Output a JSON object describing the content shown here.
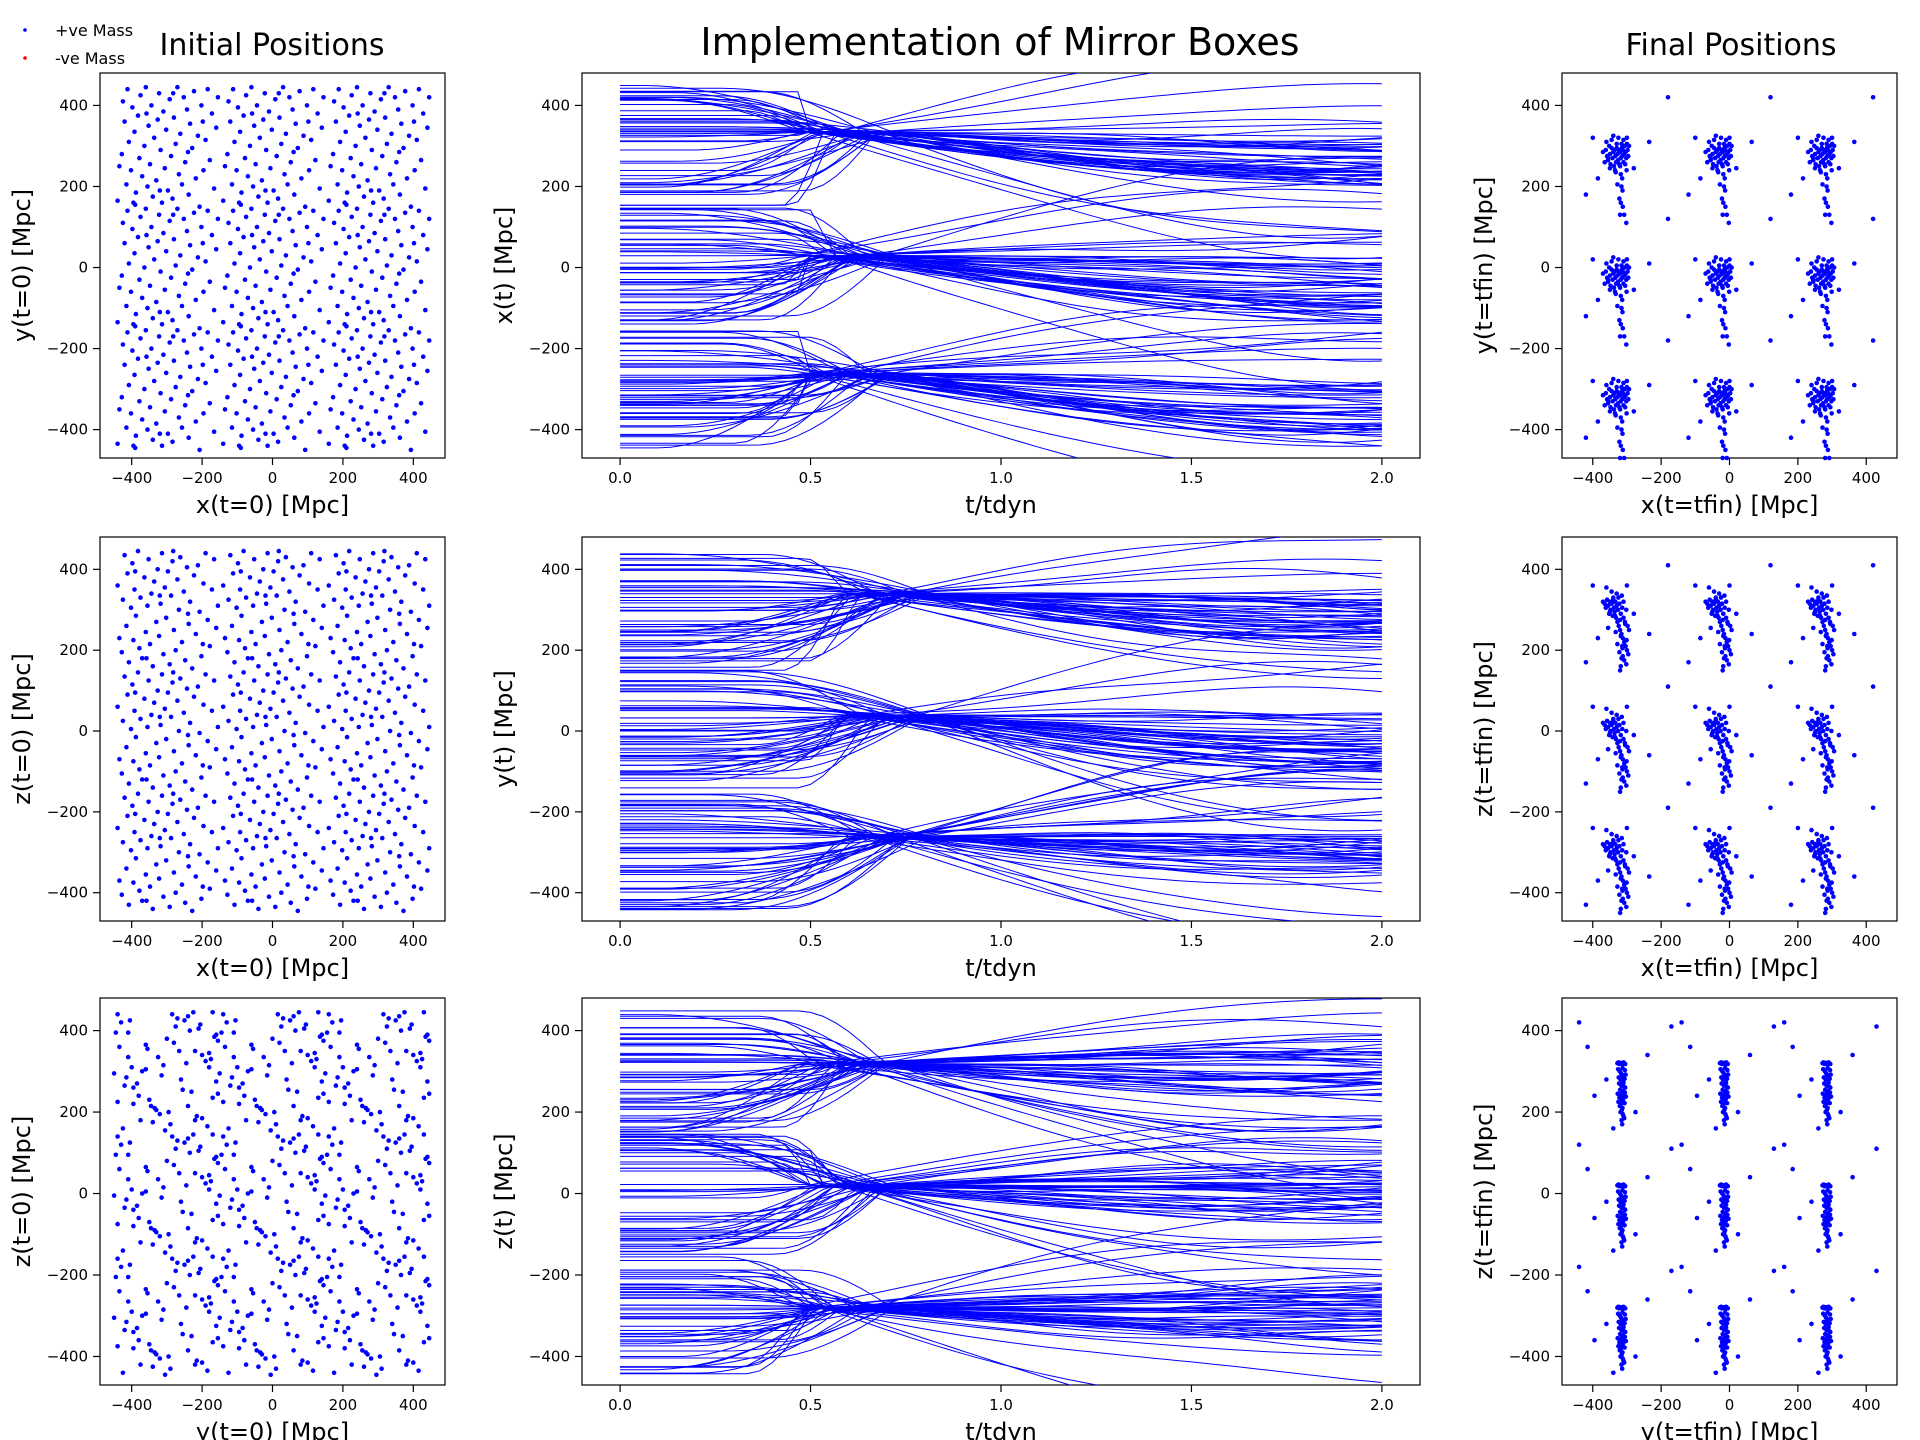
{
  "figure": {
    "suptitle": "Implementation of Mirror Boxes",
    "col_titles": [
      "Initial Positions",
      "",
      "Final Positions"
    ],
    "legend": [
      {
        "label": "+ve Mass",
        "color": "#0000ff"
      },
      {
        "label": "-ve Mass",
        "color": "#ff0000"
      }
    ]
  },
  "chart_data": [
    {
      "id": "init-xy",
      "type": "scatter",
      "xlabel": "x(t=0) [Mpc]",
      "ylabel": "y(t=0) [Mpc]",
      "xlim": [
        -490,
        490
      ],
      "ylim": [
        -470,
        480
      ],
      "xticks": [
        -400,
        -200,
        0,
        200,
        400
      ],
      "yticks": [
        -400,
        -200,
        0,
        200,
        400
      ],
      "x_offsets": [
        -300,
        0,
        300
      ],
      "y_offsets": [
        -300,
        0,
        300
      ],
      "base_x": [
        -140,
        -128,
        -125,
        -120,
        -115,
        -112,
        -108,
        -102,
        -98,
        -95,
        -92,
        -88,
        -82,
        -78,
        -75,
        -70,
        -64,
        -60,
        -55,
        -52,
        -48,
        -44,
        -40,
        -36,
        -30,
        -26,
        -22,
        -18,
        -14,
        -10,
        -6,
        -2,
        3,
        8,
        12,
        16,
        20,
        25,
        30,
        34,
        38,
        43,
        48,
        52,
        57,
        62,
        66,
        72,
        77,
        82,
        88,
        93,
        98,
        104,
        110,
        116,
        122,
        128,
        134,
        140,
        145,
        -135,
        -90,
        -58,
        -20,
        18,
        60,
        102,
        138
      ],
      "base_y": [
        -135,
        -20,
        110,
        60,
        -95,
        140,
        10,
        -60,
        95,
        -140,
        35,
        -115,
        75,
        -30,
        125,
        -75,
        0,
        145,
        -100,
        50,
        -45,
        100,
        -125,
        20,
        -85,
        65,
        130,
        -10,
        -140,
        85,
        -55,
        40,
        -110,
        115,
        -25,
        -130,
        70,
        5,
        145,
        -70,
        30,
        -95,
        120,
        -40,
        90,
        -120,
        55,
        -5,
        135,
        -80,
        25,
        -150,
        100,
        -60,
        15,
        140,
        -35,
        80,
        -105,
        45,
        120,
        -50,
        -145,
        80,
        -110,
        130,
        -15,
        60
      ]
    },
    {
      "id": "init-xz",
      "type": "scatter",
      "xlabel": "x(t=0) [Mpc]",
      "ylabel": "z(t=0) [Mpc]",
      "xlim": [
        -490,
        490
      ],
      "ylim": [
        -470,
        480
      ],
      "xticks": [
        -400,
        -200,
        0,
        200,
        400
      ],
      "yticks": [
        -400,
        -200,
        0,
        200,
        400
      ],
      "x_offsets": [
        -300,
        0,
        300
      ],
      "y_offsets": [
        -300,
        0,
        300
      ],
      "base_x": [
        -140,
        -128,
        -125,
        -120,
        -115,
        -112,
        -108,
        -102,
        -98,
        -95,
        -92,
        -88,
        -82,
        -78,
        -75,
        -70,
        -64,
        -60,
        -55,
        -52,
        -48,
        -44,
        -40,
        -36,
        -30,
        -26,
        -22,
        -18,
        -14,
        -10,
        -6,
        -2,
        3,
        8,
        12,
        16,
        20,
        25,
        30,
        34,
        38,
        43,
        48,
        52,
        57,
        62,
        66,
        72,
        77,
        82,
        88,
        93,
        98,
        104,
        110,
        116,
        122,
        128,
        134,
        140,
        145,
        -135,
        -90,
        -58,
        -20,
        18,
        60,
        102,
        138
      ],
      "base_y": [
        60,
        -105,
        25,
        135,
        -40,
        90,
        -130,
        5,
        115,
        -75,
        50,
        -15,
        145,
        -95,
        30,
        -120,
        80,
        -55,
        10,
        125,
        -85,
        40,
        -140,
        70,
        -30,
        100,
        -65,
        15,
        140,
        -110,
        55,
        -20,
        95,
        -135,
        35,
        120,
        -50,
        -100,
        75,
        0,
        130,
        -80,
        45,
        -125,
        105,
        -35,
        20,
        -145,
        85,
        -60,
        110,
        -5,
        -115,
        65,
        140,
        -25,
        -90,
        50,
        125,
        -45,
        10,
        -70,
        95,
        -120,
        35,
        145,
        -10,
        -85
      ]
    },
    {
      "id": "init-yz",
      "type": "scatter",
      "xlabel": "y(t=0) [Mpc]",
      "ylabel": "z(t=0) [Mpc]",
      "xlim": [
        -490,
        490
      ],
      "ylim": [
        -470,
        480
      ],
      "xticks": [
        -400,
        -200,
        0,
        200,
        400
      ],
      "yticks": [
        -400,
        -200,
        0,
        200,
        400
      ],
      "x_offsets": [
        -300,
        0,
        300
      ],
      "y_offsets": [
        -300,
        0,
        300
      ],
      "base_x": [
        -135,
        -20,
        110,
        60,
        -95,
        140,
        10,
        -60,
        95,
        -140,
        35,
        -115,
        75,
        -30,
        125,
        -75,
        0,
        145,
        -100,
        50,
        -45,
        100,
        -125,
        20,
        -85,
        65,
        130,
        -10,
        -140,
        85,
        -55,
        40,
        -110,
        115,
        -25,
        -130,
        70,
        5,
        145,
        -70,
        30,
        -95,
        120,
        -40,
        90,
        -120,
        55,
        -5,
        135,
        -80,
        25,
        -150,
        100,
        -60,
        15,
        140,
        -35,
        80,
        -105,
        45,
        120,
        -50,
        -145,
        80,
        -110,
        130,
        -15,
        60
      ],
      "base_y": [
        60,
        -105,
        25,
        135,
        -40,
        90,
        -130,
        5,
        115,
        -75,
        50,
        -15,
        145,
        -95,
        30,
        -120,
        80,
        -55,
        10,
        125,
        -85,
        40,
        -140,
        70,
        -30,
        100,
        -65,
        15,
        140,
        -110,
        55,
        -20,
        95,
        -135,
        35,
        120,
        -50,
        -100,
        75,
        0,
        130,
        -80,
        45,
        -125,
        105,
        -35,
        20,
        -145,
        85,
        -60,
        110,
        -5,
        -115,
        65,
        140,
        -25,
        -90,
        50,
        125,
        -45,
        10,
        -70,
        95,
        -120,
        35,
        145,
        -10,
        -85
      ]
    },
    {
      "id": "traj-x",
      "type": "line",
      "xlabel": "t/tdyn",
      "ylabel": "x(t) [Mpc]",
      "xlim": [
        -0.1,
        2.1
      ],
      "ylim": [
        -470,
        480
      ],
      "xticks": [
        0.0,
        0.5,
        1.0,
        1.5,
        2.0
      ],
      "xtick_labels": [
        "0.0",
        "0.5",
        "1.0",
        "1.5",
        "2.0"
      ],
      "yticks": [
        -400,
        -200,
        0,
        200,
        400
      ],
      "x_range": [
        0,
        2
      ],
      "centers": [
        -300,
        0,
        300
      ],
      "converge_at": 0.6,
      "focus_offsets": [
        40,
        30,
        35
      ],
      "late_offsets": [
        -45,
        -55,
        -40
      ]
    },
    {
      "id": "traj-y",
      "type": "line",
      "xlabel": "t/tdyn",
      "ylabel": "y(t) [Mpc]",
      "xlim": [
        -0.1,
        2.1
      ],
      "ylim": [
        -470,
        480
      ],
      "xticks": [
        0.0,
        0.5,
        1.0,
        1.5,
        2.0
      ],
      "xtick_labels": [
        "0.0",
        "0.5",
        "1.0",
        "1.5",
        "2.0"
      ],
      "yticks": [
        -400,
        -200,
        0,
        200,
        400
      ],
      "x_range": [
        0,
        2
      ],
      "centers": [
        -300,
        0,
        300
      ],
      "converge_at": 0.7,
      "focus_offsets": [
        40,
        40,
        40
      ],
      "late_offsets": [
        -25,
        -30,
        -25
      ]
    },
    {
      "id": "traj-z",
      "type": "line",
      "xlabel": "t/tdyn",
      "ylabel": "z(t) [Mpc]",
      "xlim": [
        -0.1,
        2.1
      ],
      "ylim": [
        -470,
        480
      ],
      "xticks": [
        0.0,
        0.5,
        1.0,
        1.5,
        2.0
      ],
      "xtick_labels": [
        "0.0",
        "0.5",
        "1.0",
        "1.5",
        "2.0"
      ],
      "yticks": [
        -400,
        -200,
        0,
        200,
        400
      ],
      "x_range": [
        0,
        2
      ],
      "centers": [
        -300,
        0,
        300
      ],
      "converge_at": 0.6,
      "focus_offsets": [
        20,
        20,
        20
      ],
      "late_offsets": [
        5,
        5,
        5
      ]
    },
    {
      "id": "final-xy",
      "type": "scatter",
      "xlabel": "x(t=tfin) [Mpc]",
      "ylabel": "y(t=tfin) [Mpc]",
      "xlim": [
        -490,
        490
      ],
      "ylim": [
        -470,
        480
      ],
      "xticks": [
        -400,
        -200,
        0,
        200,
        400
      ],
      "yticks": [
        -400,
        -200,
        0,
        200,
        400
      ],
      "x_offsets": [
        -300,
        0,
        300
      ],
      "y_offsets": [
        -300,
        0,
        300
      ],
      "base_x": [
        -70,
        -65,
        -62,
        -58,
        -55,
        -52,
        -50,
        -48,
        -45,
        -42,
        -40,
        -38,
        -36,
        -34,
        -32,
        -30,
        -28,
        -26,
        -24,
        -22,
        -20,
        -18,
        -16,
        -14,
        -12,
        -10,
        -8,
        -6,
        -4,
        -2,
        0,
        2,
        4,
        6,
        -60,
        -45,
        -30,
        -15,
        0,
        -50,
        -35,
        -20,
        -5,
        -40,
        -25,
        -10,
        -55,
        -33,
        -18,
        -1,
        -28,
        -13,
        -22,
        -12,
        -8,
        -2,
        -100,
        -85,
        20,
        65,
        -120,
        120,
        -20,
        -18,
        -16,
        -14
      ],
      "base_y": [
        -15,
        -40,
        -10,
        -25,
        -35,
        0,
        -20,
        -45,
        -5,
        -30,
        -15,
        -50,
        -10,
        -25,
        -40,
        -5,
        -20,
        -35,
        -10,
        -45,
        -15,
        -30,
        5,
        -25,
        -10,
        -40,
        -20,
        0,
        -15,
        -30,
        5,
        -10,
        -25,
        0,
        10,
        15,
        5,
        -5,
        20,
        -55,
        -60,
        -50,
        -45,
        25,
        20,
        15,
        -30,
        -65,
        -70,
        -60,
        -95,
        -110,
        -130,
        -150,
        -170,
        -190,
        20,
        -80,
        -55,
        10,
        -120,
        120,
        -170,
        -140,
        -100,
        -80
      ]
    },
    {
      "id": "final-xz",
      "type": "scatter",
      "xlabel": "x(t=tfin) [Mpc]",
      "ylabel": "z(t=tfin) [Mpc]",
      "xlim": [
        -490,
        490
      ],
      "ylim": [
        -470,
        480
      ],
      "xticks": [
        -400,
        -200,
        0,
        200,
        400
      ],
      "yticks": [
        -400,
        -200,
        0,
        200,
        400
      ],
      "x_offsets": [
        -300,
        0,
        300
      ],
      "y_offsets": [
        -300,
        0,
        300
      ],
      "base_x": [
        -70,
        -65,
        -62,
        -58,
        -55,
        -52,
        -50,
        -48,
        -45,
        -42,
        -40,
        -38,
        -36,
        -34,
        -32,
        -30,
        -28,
        -26,
        -24,
        -22,
        -20,
        -18,
        -16,
        -14,
        -12,
        -10,
        -8,
        -6,
        -4,
        -2,
        0,
        2,
        4,
        6,
        -60,
        -45,
        -30,
        -15,
        0,
        -50,
        -35,
        -20,
        -5,
        -40,
        -25,
        -10,
        -55,
        -33,
        -18,
        -1,
        -28,
        -13,
        -22,
        -12,
        -8,
        -2,
        -100,
        -85,
        20,
        65,
        -120,
        120,
        -20,
        -18,
        -16,
        -14
      ],
      "base_y": [
        20,
        15,
        5,
        25,
        10,
        -10,
        20,
        0,
        15,
        -15,
        30,
        5,
        -5,
        20,
        -20,
        10,
        -30,
        0,
        -40,
        15,
        -50,
        -10,
        -60,
        5,
        -70,
        -20,
        -80,
        -30,
        -90,
        0,
        -100,
        -40,
        -110,
        -50,
        55,
        45,
        40,
        35,
        60,
        -5,
        -15,
        -25,
        -35,
        25,
        30,
        20,
        -45,
        -55,
        -65,
        -75,
        -85,
        -95,
        -105,
        -115,
        -125,
        -135,
        60,
        -70,
        -10,
        -60,
        -130,
        110,
        -150,
        -140,
        -120,
        -90
      ]
    },
    {
      "id": "final-yz",
      "type": "scatter",
      "xlabel": "y(t=tfin) [Mpc]",
      "ylabel": "z(t=tfin) [Mpc]",
      "xlim": [
        -490,
        490
      ],
      "ylim": [
        -470,
        480
      ],
      "xticks": [
        -400,
        -200,
        0,
        200,
        400
      ],
      "yticks": [
        -400,
        -200,
        0,
        200,
        400
      ],
      "x_offsets": [
        -300,
        0,
        300
      ],
      "y_offsets": [
        -300,
        0,
        300
      ],
      "base_x": [
        -28,
        -25,
        -22,
        -20,
        -18,
        -15,
        -12,
        -10,
        -8,
        -5,
        -26,
        -21,
        -17,
        -13,
        -9,
        -6,
        -24,
        -19,
        -14,
        -11,
        -7,
        -4,
        -23,
        -16,
        -10,
        -5,
        -20,
        -15,
        -8,
        -27,
        -18,
        -12,
        -6,
        -22,
        -14,
        -9,
        -25,
        -17,
        -11,
        -3,
        -21,
        -13,
        -7,
        -19,
        -15,
        -10,
        -16,
        -12,
        -8,
        -14,
        -95,
        -60,
        60,
        -140,
        130,
        25,
        -40,
        -115
      ],
      "base_y": [
        20,
        22,
        18,
        21,
        19,
        20,
        17,
        22,
        20,
        18,
        5,
        0,
        -5,
        8,
        -10,
        3,
        -15,
        -20,
        -12,
        -25,
        -18,
        -8,
        -30,
        -35,
        -28,
        -40,
        -45,
        -50,
        -38,
        -55,
        -60,
        -48,
        -52,
        -65,
        -70,
        -58,
        -75,
        -80,
        -68,
        -62,
        -85,
        -90,
        -78,
        -100,
        -95,
        -110,
        -120,
        -105,
        -115,
        -130,
        -60,
        -20,
        40,
        120,
        110,
        -100,
        -140,
        60
      ]
    }
  ]
}
